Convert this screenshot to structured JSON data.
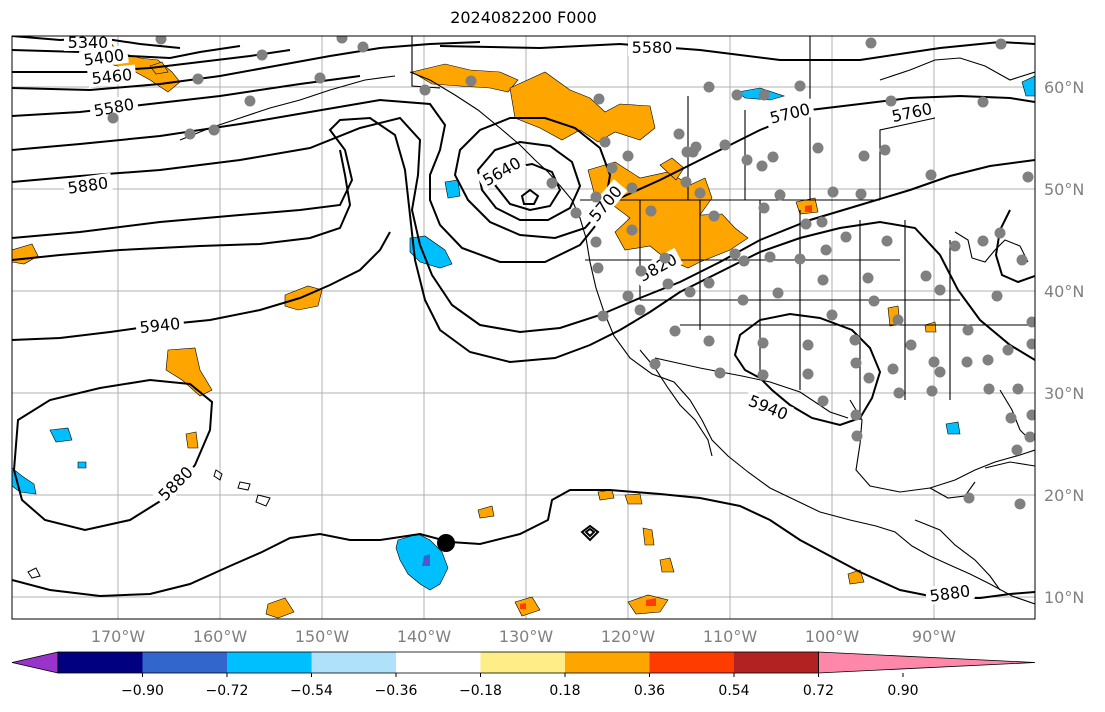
{
  "title": "2024082200 F000",
  "map": {
    "lon_labels": [
      "170°W",
      "160°W",
      "150°W",
      "140°W",
      "130°W",
      "120°W",
      "110°W",
      "100°W",
      "90°W"
    ],
    "lat_labels": [
      "60°N",
      "50°N",
      "40°N",
      "30°N",
      "20°N",
      "10°N"
    ],
    "contour_labels": [
      "5340",
      "5400",
      "5460",
      "5580",
      "5580",
      "5640",
      "5700",
      "5700",
      "5760",
      "5820",
      "5880",
      "5880",
      "5880",
      "5940",
      "5940"
    ],
    "contour_color": "#000000",
    "station_color": "#808080"
  },
  "colorbar": {
    "ticks": [
      "−0.90",
      "−0.72",
      "−0.54",
      "−0.36",
      "−0.18",
      "0.18",
      "0.36",
      "0.54",
      "0.72",
      "0.90"
    ],
    "colors": [
      "#9933cc",
      "#000080",
      "#3366cc",
      "#00bfff",
      "#afe1fb",
      "#ffffff",
      "#ffee88",
      "#ffa500",
      "#ff3c00",
      "#b22222",
      "#ff88aa"
    ]
  }
}
